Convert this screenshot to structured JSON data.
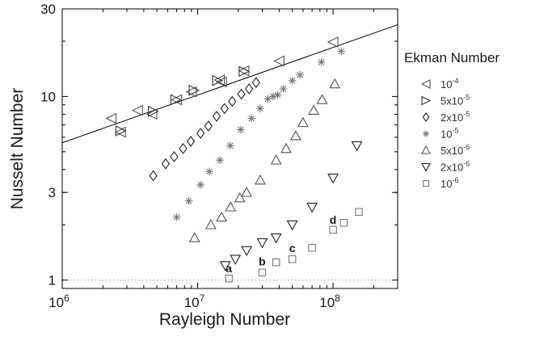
{
  "chart_data": {
    "type": "scatter",
    "xlabel": "Rayleigh Number",
    "ylabel": "Nusselt Number",
    "xscale": "log",
    "yscale": "log",
    "xlim": [
      1000000,
      300000000
    ],
    "ylim": [
      0.9,
      30
    ],
    "grid": false,
    "legend": {
      "title": "Ekman Number",
      "placement": "right"
    },
    "x_ticks": [
      {
        "value": 1000000,
        "base": "10",
        "exp": "6"
      },
      {
        "value": 10000000,
        "base": "10",
        "exp": "7"
      },
      {
        "value": 100000000,
        "base": "10",
        "exp": "8"
      }
    ],
    "y_ticks": [
      {
        "value": 1,
        "label": "1"
      },
      {
        "value": 3,
        "label": "3"
      },
      {
        "value": 10,
        "label": "10"
      },
      {
        "value": 30,
        "label": "30"
      }
    ],
    "series": [
      {
        "name": "10^-4",
        "label_base": "10",
        "label_exp": "-4",
        "marker": "triangle-left",
        "color": "#555555",
        "points": [
          [
            2300000,
            7.6
          ],
          [
            2700000,
            6.4
          ],
          [
            3600000,
            8.4
          ],
          [
            4600000,
            8.0
          ],
          [
            7000000,
            9.6
          ],
          [
            9000000,
            10.6
          ],
          [
            14500000,
            12.3
          ],
          [
            15000000,
            12.0
          ],
          [
            22000000,
            13.8
          ],
          [
            40000000,
            15.6
          ],
          [
            100000000,
            19.8
          ]
        ]
      },
      {
        "name": "5x10^-5",
        "label_base": "5x10",
        "label_exp": "-5",
        "marker": "triangle-right",
        "color": "#333333",
        "points": [
          [
            2700000,
            6.5
          ],
          [
            4700000,
            8.3
          ],
          [
            6900000,
            9.6
          ],
          [
            9400000,
            10.8
          ],
          [
            14000000,
            12.2
          ],
          [
            22000000,
            13.7
          ]
        ]
      },
      {
        "name": "2x10^-5",
        "label_base": "2x10",
        "label_exp": "-5",
        "marker": "diamond",
        "color": "#222222",
        "points": [
          [
            4700000,
            3.7
          ],
          [
            5800000,
            4.3
          ],
          [
            6700000,
            4.7
          ],
          [
            7800000,
            5.2
          ],
          [
            8900000,
            5.7
          ],
          [
            10500000,
            6.3
          ],
          [
            12000000,
            6.9
          ],
          [
            13800000,
            7.8
          ],
          [
            15800000,
            8.6
          ],
          [
            18000000,
            9.4
          ],
          [
            21000000,
            10.3
          ],
          [
            24000000,
            11.0
          ],
          [
            27000000,
            11.9
          ]
        ]
      },
      {
        "name": "10^-5",
        "label_base": "10",
        "label_exp": "-5",
        "marker": "asterisk",
        "color": "#777777",
        "points": [
          [
            7000000,
            2.2
          ],
          [
            8600000,
            2.7
          ],
          [
            10500000,
            3.3
          ],
          [
            12200000,
            3.9
          ],
          [
            14600000,
            4.5
          ],
          [
            17400000,
            5.4
          ],
          [
            20800000,
            6.6
          ],
          [
            25000000,
            7.6
          ],
          [
            29000000,
            8.6
          ],
          [
            33000000,
            9.7
          ],
          [
            36000000,
            10.0
          ],
          [
            39000000,
            10.2
          ],
          [
            43000000,
            11.0
          ],
          [
            50000000,
            12.2
          ],
          [
            57000000,
            13.1
          ],
          [
            82000000,
            15.4
          ],
          [
            115000000,
            17.6
          ]
        ]
      },
      {
        "name": "5x10^-6",
        "label_base": "5x10",
        "label_exp": "-6",
        "marker": "triangle-up",
        "color": "#555555",
        "points": [
          [
            9500000,
            1.7
          ],
          [
            12500000,
            2.0
          ],
          [
            15000000,
            2.2
          ],
          [
            17500000,
            2.5
          ],
          [
            20500000,
            2.8
          ],
          [
            23000000,
            3.0
          ],
          [
            29000000,
            3.5
          ],
          [
            38000000,
            4.5
          ],
          [
            45000000,
            5.2
          ],
          [
            53000000,
            6.1
          ],
          [
            60000000,
            7.2
          ],
          [
            72000000,
            8.4
          ],
          [
            83000000,
            9.6
          ],
          [
            103000000,
            11.7
          ]
        ]
      },
      {
        "name": "2x10^-6",
        "label_base": "2x10",
        "label_exp": "-6",
        "marker": "triangle-down",
        "color": "#222222",
        "points": [
          [
            16000000,
            1.2
          ],
          [
            19000000,
            1.3
          ],
          [
            23000000,
            1.45
          ],
          [
            30000000,
            1.6
          ],
          [
            38000000,
            1.7
          ],
          [
            50000000,
            2.0
          ],
          [
            70000000,
            2.5
          ],
          [
            100000000,
            3.6
          ],
          [
            150000000,
            5.4
          ]
        ]
      },
      {
        "name": "10^-6",
        "label_base": "10",
        "label_exp": "-6",
        "marker": "square",
        "color": "#777777",
        "points": [
          [
            17000000,
            1.02
          ],
          [
            30000000,
            1.1
          ],
          [
            38000000,
            1.25
          ],
          [
            50000000,
            1.3
          ],
          [
            70000000,
            1.5
          ],
          [
            100000000,
            1.88
          ],
          [
            120000000,
            2.05
          ],
          [
            155000000,
            2.35
          ]
        ]
      }
    ],
    "fit_line": {
      "x": [
        1000000,
        300000000
      ],
      "y": [
        5.6,
        24.6
      ],
      "color": "#000000"
    },
    "reference_line": {
      "y": 1,
      "style": "dotted",
      "color": "#999999"
    },
    "annotations": [
      {
        "text": "a",
        "x": 17000000,
        "y": 1.1
      },
      {
        "text": "b",
        "x": 30000000,
        "y": 1.2
      },
      {
        "text": "c",
        "x": 50000000,
        "y": 1.42
      },
      {
        "text": "d",
        "x": 100000000,
        "y": 2.02
      }
    ]
  }
}
